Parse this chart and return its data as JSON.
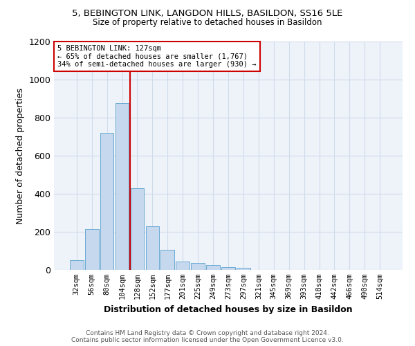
{
  "title1": "5, BEBINGTON LINK, LANGDON HILLS, BASILDON, SS16 5LE",
  "title2": "Size of property relative to detached houses in Basildon",
  "xlabel": "Distribution of detached houses by size in Basildon",
  "ylabel": "Number of detached properties",
  "annotation_line1": "5 BEBINGTON LINK: 127sqm",
  "annotation_line2": "← 65% of detached houses are smaller (1,767)",
  "annotation_line3": "34% of semi-detached houses are larger (930) →",
  "bar_labels": [
    "32sqm",
    "56sqm",
    "80sqm",
    "104sqm",
    "128sqm",
    "152sqm",
    "177sqm",
    "201sqm",
    "225sqm",
    "249sqm",
    "273sqm",
    "297sqm",
    "321sqm",
    "345sqm",
    "369sqm",
    "393sqm",
    "418sqm",
    "442sqm",
    "466sqm",
    "490sqm",
    "514sqm"
  ],
  "bar_values": [
    50,
    215,
    720,
    875,
    430,
    230,
    105,
    45,
    35,
    25,
    15,
    10,
    0,
    0,
    0,
    0,
    0,
    0,
    0,
    0,
    0
  ],
  "bar_color": "#c5d8ee",
  "bar_edgecolor": "#6aaad4",
  "vline_x_index": 4,
  "vline_color": "#cc0000",
  "ylim": [
    0,
    1200
  ],
  "yticks": [
    0,
    200,
    400,
    600,
    800,
    1000,
    1200
  ],
  "grid_color": "#d0dcea",
  "bg_color": "#eef2f9",
  "footer_line1": "Contains HM Land Registry data © Crown copyright and database right 2024.",
  "footer_line2": "Contains public sector information licensed under the Open Government Licence v3.0."
}
